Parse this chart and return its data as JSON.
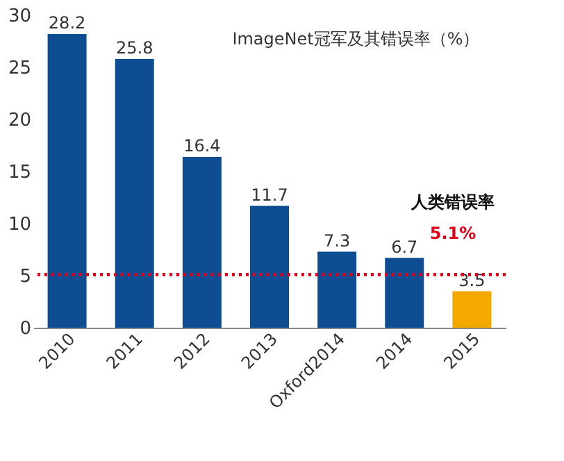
{
  "chart_data": {
    "type": "bar",
    "title": "ImageNet冠军及其错误率（%）",
    "categories": [
      "2010",
      "2011",
      "2012",
      "2013",
      "Oxford2014",
      "2014",
      "2015"
    ],
    "values": [
      28.2,
      25.8,
      16.4,
      11.7,
      7.3,
      6.7,
      3.5
    ],
    "colors": [
      "#0e4d92",
      "#0e4d92",
      "#0e4d92",
      "#0e4d92",
      "#0e4d92",
      "#0e4d92",
      "#f5a800"
    ],
    "ylim": [
      0,
      30
    ],
    "yticks": [
      0,
      5,
      10,
      15,
      20,
      25,
      30
    ],
    "grid": false,
    "data_labels": true,
    "ref_lines": [
      {
        "axis": "y",
        "value": 5.1,
        "label": "5.1%",
        "color": "#e3001b",
        "line_style": "dotted"
      }
    ],
    "annotations": [
      "人类错误率"
    ]
  }
}
